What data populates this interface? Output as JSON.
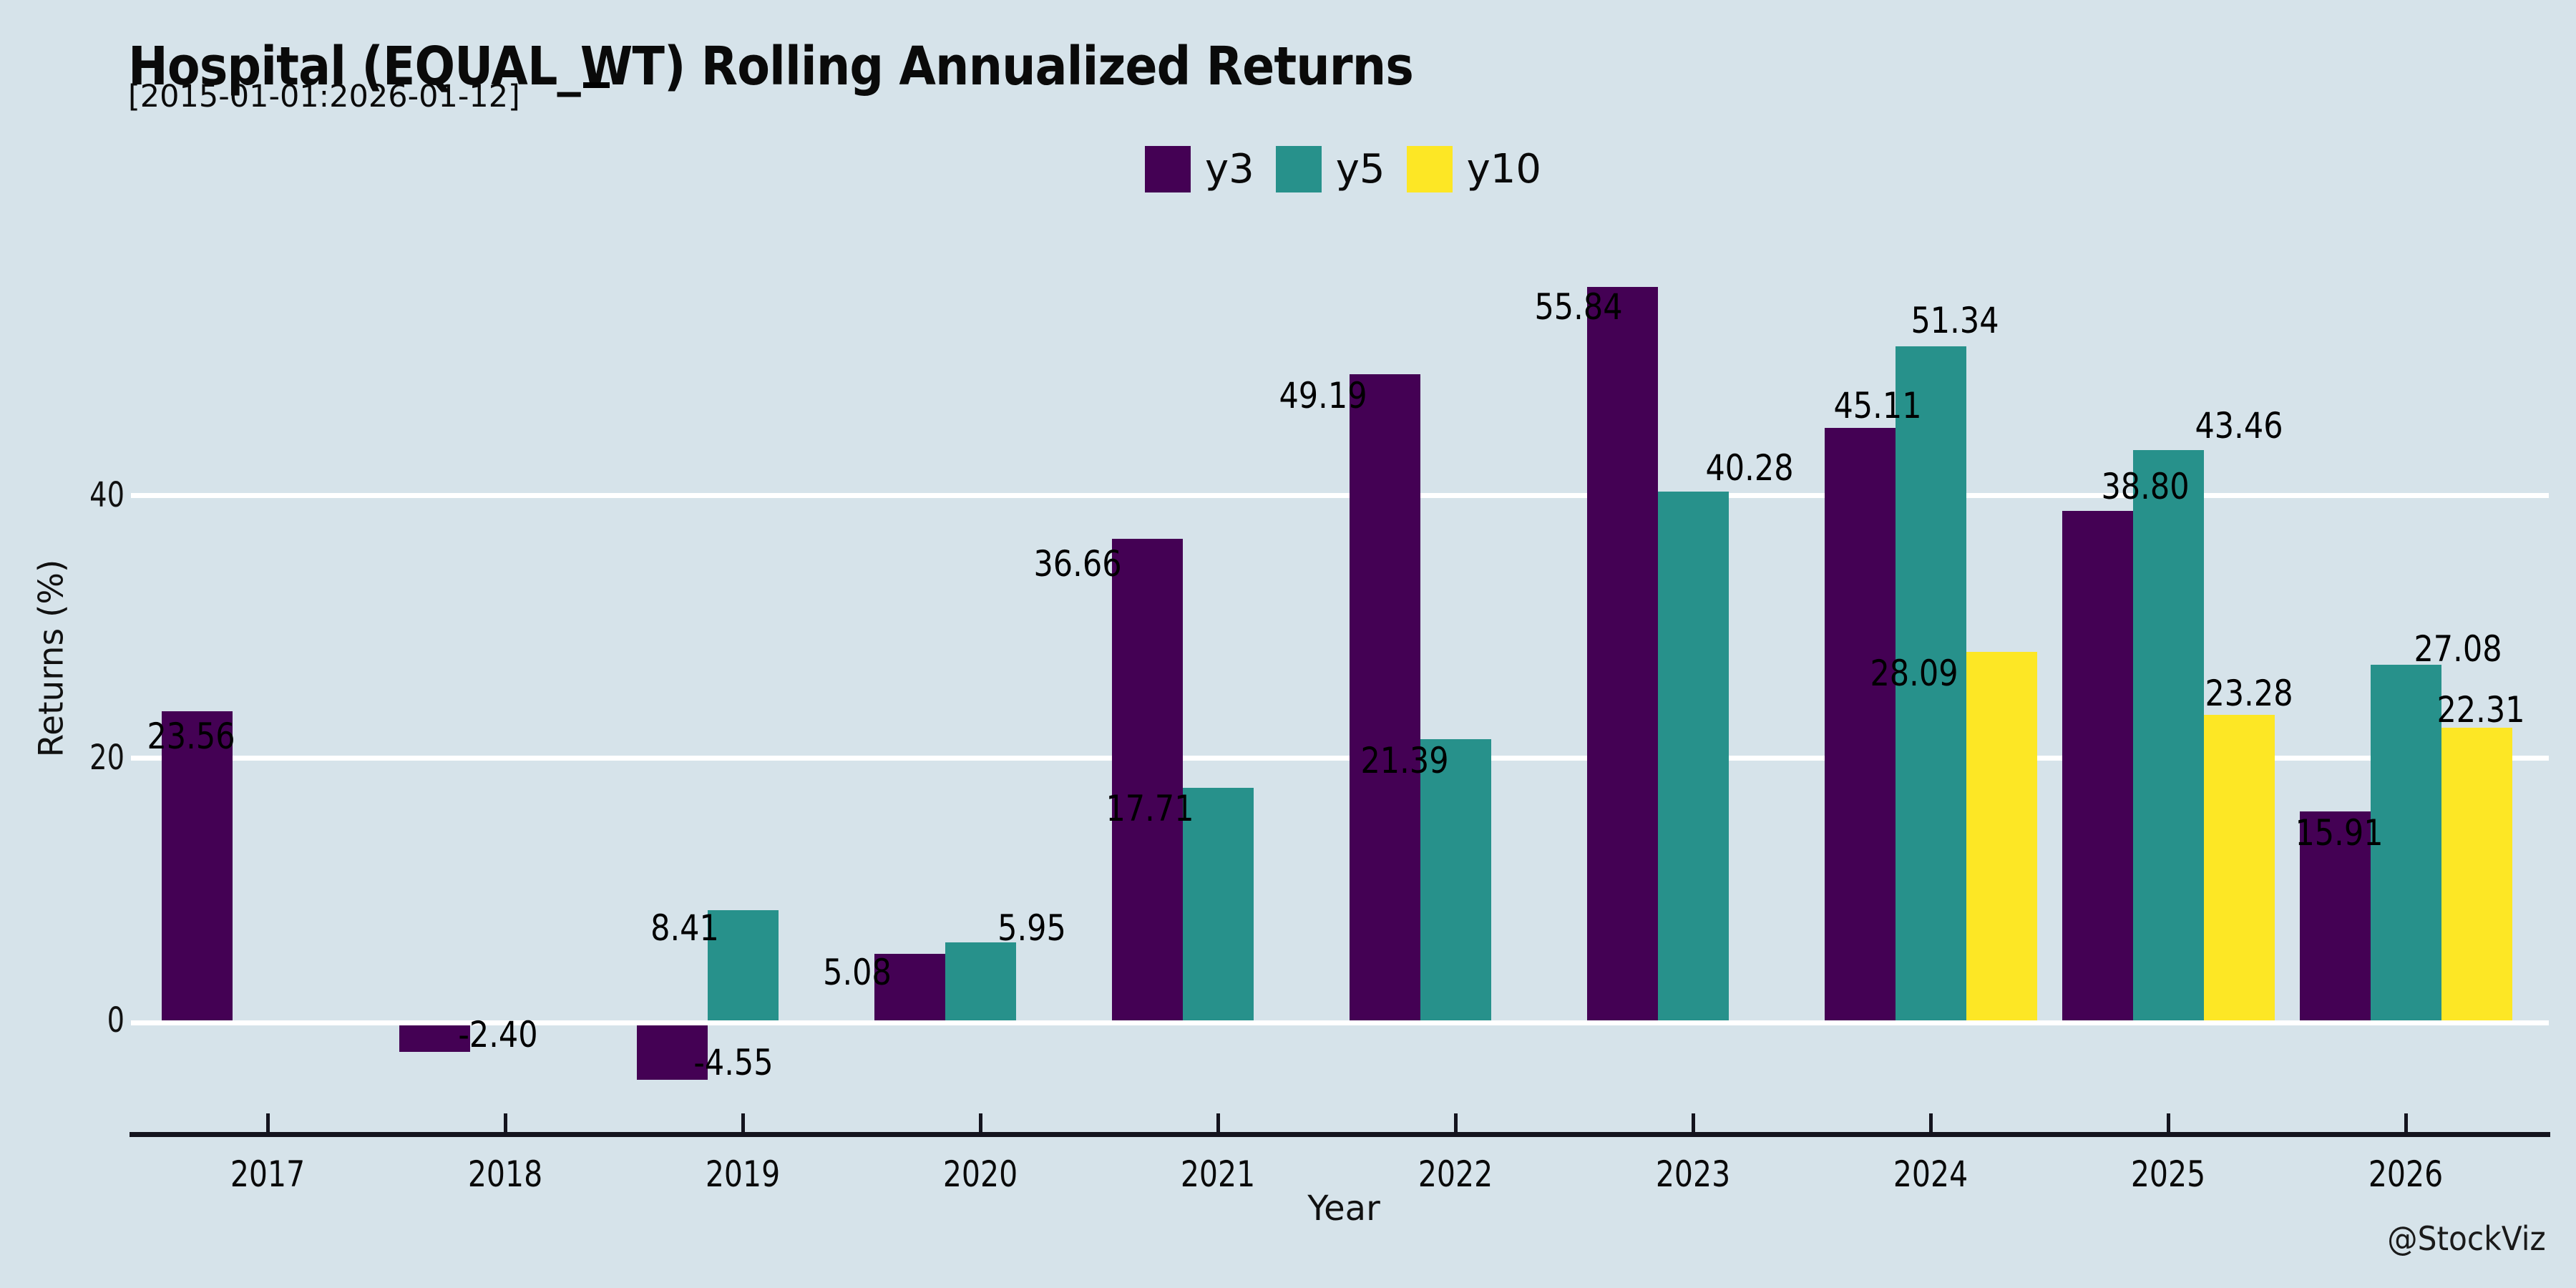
{
  "header": {
    "title": "Hospital (EQUAL_WT) Rolling Annualized Returns",
    "subtitle": "[2015-01-01:2026-01-12]",
    "subtitle_mark": "_"
  },
  "watermark": "@StockViz",
  "chart_data": {
    "type": "bar",
    "title": "Hospital (EQUAL_WT) Rolling Annualized Returns",
    "subtitle": "[2015-01-01:2026-01-12]",
    "xlabel": "Year",
    "ylabel": "Returns (%)",
    "categories": [
      "2017",
      "2018",
      "2019",
      "2020",
      "2021",
      "2022",
      "2023",
      "2024",
      "2025",
      "2026"
    ],
    "series": [
      {
        "name": "y3",
        "color": "#440154",
        "values": [
          23.56,
          -2.4,
          -4.55,
          5.08,
          36.66,
          49.19,
          55.84,
          45.11,
          38.8,
          15.91
        ]
      },
      {
        "name": "y5",
        "color": "#27918b",
        "values": [
          null,
          null,
          8.41,
          5.95,
          17.71,
          21.39,
          40.28,
          51.34,
          43.46,
          27.08
        ]
      },
      {
        "name": "y10",
        "color": "#fde725",
        "values": [
          null,
          null,
          null,
          null,
          null,
          null,
          null,
          28.09,
          23.28,
          22.31
        ]
      }
    ],
    "yticks": [
      0,
      20,
      40
    ],
    "ylim": [
      -9,
      58.8
    ],
    "grid": "horizontal",
    "gridline_color": "#ffffff",
    "background_color": "#d6e3ea",
    "legend_position": "top-center",
    "value_labels": true,
    "value_label_format": "2dp"
  },
  "layout_hints": {
    "label_pos": {
      "2017-y3": [
        267,
        1029
      ],
      "2018-y3": [
        696,
        1446
      ],
      "2019-y3": [
        1025,
        1485
      ],
      "2019-y5": [
        957,
        1297
      ],
      "2020-y3": [
        1198,
        1359
      ],
      "2020-y5": [
        1442,
        1297
      ],
      "2021-y3": [
        1506,
        788
      ],
      "2021-y5": [
        1607,
        1130
      ],
      "2022-y3": [
        1849,
        553
      ],
      "2022-y5": [
        1963,
        1063
      ],
      "2023-y3": [
        2206,
        429
      ],
      "2023-y5": [
        2445,
        654
      ],
      "2024-y3": [
        2624,
        567
      ],
      "2024-y5": [
        2732,
        448
      ],
      "2024-y10": [
        2675,
        941
      ],
      "2025-y3": [
        2998,
        680
      ],
      "2025-y5": [
        3129,
        595
      ],
      "2025-y10": [
        3143,
        969
      ],
      "2026-y3": [
        3269,
        1164
      ],
      "2026-y5": [
        3435,
        907
      ],
      "2026-y10": [
        3467,
        992
      ]
    }
  }
}
